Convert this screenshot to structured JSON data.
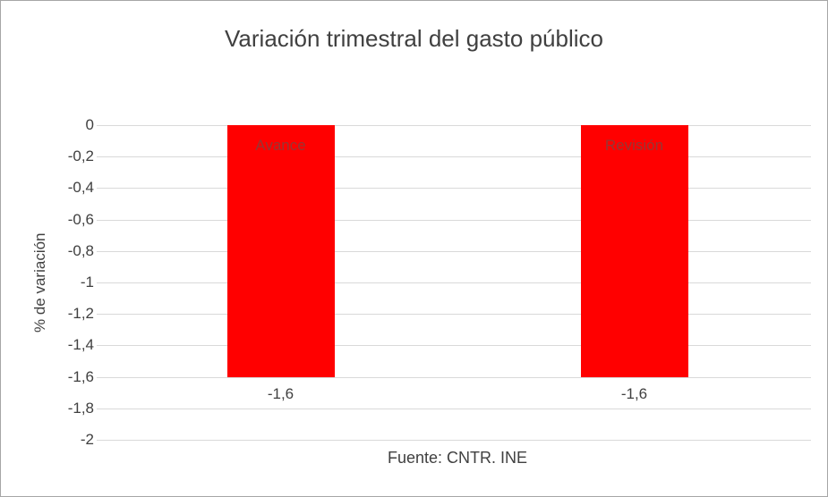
{
  "chart_data": {
    "type": "bar",
    "title": "Variación trimestral del gasto público",
    "ylabel": "% de variación",
    "source": "Fuente: CNTR. INE",
    "categories": [
      "Avance",
      "Revisión"
    ],
    "values": [
      -1.6,
      -1.6
    ],
    "value_labels": [
      "-1,6",
      "-1,6"
    ],
    "ylim": [
      -2,
      0
    ],
    "yticks": [
      0,
      -0.2,
      -0.4,
      -0.6,
      -0.8,
      -1,
      -1.2,
      -1.4,
      -1.6,
      -1.8,
      -2
    ],
    "ytick_labels": [
      "0",
      "-0,2",
      "-0,4",
      "-0,6",
      "-0,8",
      "-1",
      "-1,2",
      "-1,4",
      "-1,6",
      "-1,8",
      "-2"
    ],
    "grid": true,
    "legend": "none",
    "colors": {
      "bar": "#ff0000",
      "bar_label": "#963634",
      "text": "#404040",
      "grid": "#d9d9d9",
      "border": "#a6a6a6"
    }
  }
}
